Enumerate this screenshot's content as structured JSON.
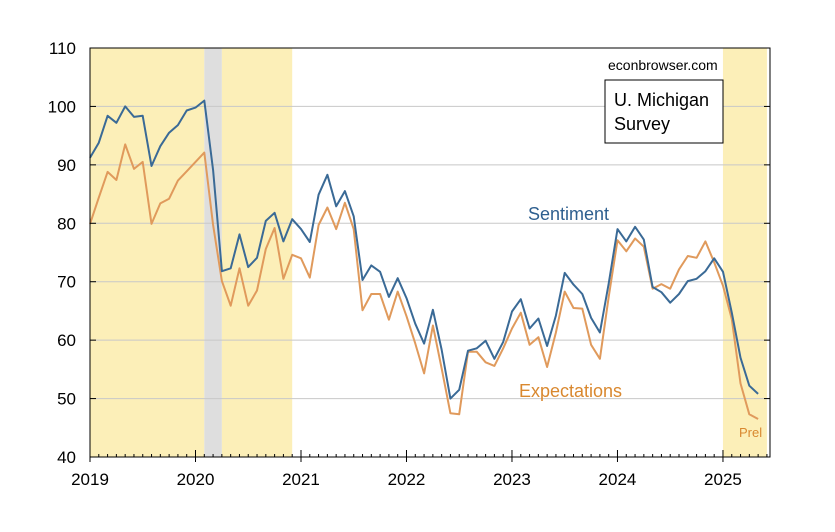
{
  "chart_data": {
    "type": "line",
    "watermark": "econbrowser.com",
    "box_title_line1": "U. Michigan",
    "box_title_line2": "Survey",
    "x_range": [
      "2019-01",
      "2025-06"
    ],
    "ylim": [
      40,
      110
    ],
    "yticks": [
      40,
      50,
      60,
      70,
      80,
      90,
      100,
      110
    ],
    "xtick_labels": [
      "2019",
      "2020",
      "2021",
      "2022",
      "2023",
      "2024",
      "2025"
    ],
    "grid": true,
    "shaded_periods": [
      {
        "start": "2019-01",
        "end": "2020-02",
        "color": "#fcefb8"
      },
      {
        "start": "2020-02",
        "end": "2020-04",
        "color": "#dedede"
      },
      {
        "start": "2020-04",
        "end": "2020-12",
        "color": "#fcefb8"
      },
      {
        "start": "2025-01",
        "end": "2025-06",
        "color": "#fcefb8"
      }
    ],
    "series": [
      {
        "name": "Sentiment",
        "color": "#3a6a96",
        "x": [
          "2019-01",
          "2019-02",
          "2019-03",
          "2019-04",
          "2019-05",
          "2019-06",
          "2019-07",
          "2019-08",
          "2019-09",
          "2019-10",
          "2019-11",
          "2019-12",
          "2020-01",
          "2020-02",
          "2020-03",
          "2020-04",
          "2020-05",
          "2020-06",
          "2020-07",
          "2020-08",
          "2020-09",
          "2020-10",
          "2020-11",
          "2020-12",
          "2021-01",
          "2021-02",
          "2021-03",
          "2021-04",
          "2021-05",
          "2021-06",
          "2021-07",
          "2021-08",
          "2021-09",
          "2021-10",
          "2021-11",
          "2021-12",
          "2022-01",
          "2022-02",
          "2022-03",
          "2022-04",
          "2022-05",
          "2022-06",
          "2022-07",
          "2022-08",
          "2022-09",
          "2022-10",
          "2022-11",
          "2022-12",
          "2023-01",
          "2023-02",
          "2023-03",
          "2023-04",
          "2023-05",
          "2023-06",
          "2023-07",
          "2023-08",
          "2023-09",
          "2023-10",
          "2023-11",
          "2023-12",
          "2024-01",
          "2024-02",
          "2024-03",
          "2024-04",
          "2024-05",
          "2024-06",
          "2024-07",
          "2024-08",
          "2024-09",
          "2024-10",
          "2024-11",
          "2024-12",
          "2025-01",
          "2025-02",
          "2025-03",
          "2025-04",
          "2025-05"
        ],
        "values": [
          91.2,
          93.8,
          98.4,
          97.2,
          100.0,
          98.2,
          98.4,
          89.8,
          93.2,
          95.5,
          96.8,
          99.3,
          99.8,
          101.0,
          89.1,
          71.8,
          72.3,
          78.1,
          72.5,
          74.1,
          80.4,
          81.8,
          76.9,
          80.7,
          79.0,
          76.8,
          84.9,
          88.3,
          82.9,
          85.5,
          81.2,
          70.3,
          72.8,
          71.7,
          67.4,
          70.6,
          67.2,
          62.8,
          59.4,
          65.2,
          58.4,
          50.0,
          51.5,
          58.2,
          58.6,
          59.9,
          56.8,
          59.7,
          64.9,
          67.0,
          62.0,
          63.7,
          59.0,
          64.2,
          71.5,
          69.5,
          67.9,
          63.8,
          61.3,
          69.7,
          79.0,
          76.9,
          79.4,
          77.2,
          69.1,
          68.2,
          66.4,
          67.9,
          70.1,
          70.5,
          71.8,
          74.0,
          71.7,
          64.7,
          57.0,
          52.2,
          50.8
        ]
      },
      {
        "name": "Expectations",
        "color": "#e09a5c",
        "x": [
          "2019-01",
          "2019-02",
          "2019-03",
          "2019-04",
          "2019-05",
          "2019-06",
          "2019-07",
          "2019-08",
          "2019-09",
          "2019-10",
          "2019-11",
          "2019-12",
          "2020-01",
          "2020-02",
          "2020-03",
          "2020-04",
          "2020-05",
          "2020-06",
          "2020-07",
          "2020-08",
          "2020-09",
          "2020-10",
          "2020-11",
          "2020-12",
          "2021-01",
          "2021-02",
          "2021-03",
          "2021-04",
          "2021-05",
          "2021-06",
          "2021-07",
          "2021-08",
          "2021-09",
          "2021-10",
          "2021-11",
          "2021-12",
          "2022-01",
          "2022-02",
          "2022-03",
          "2022-04",
          "2022-05",
          "2022-06",
          "2022-07",
          "2022-08",
          "2022-09",
          "2022-10",
          "2022-11",
          "2022-12",
          "2023-01",
          "2023-02",
          "2023-03",
          "2023-04",
          "2023-05",
          "2023-06",
          "2023-07",
          "2023-08",
          "2023-09",
          "2023-10",
          "2023-11",
          "2023-12",
          "2024-01",
          "2024-02",
          "2024-03",
          "2024-04",
          "2024-05",
          "2024-06",
          "2024-07",
          "2024-08",
          "2024-09",
          "2024-10",
          "2024-11",
          "2024-12",
          "2025-01",
          "2025-02",
          "2025-03",
          "2025-04",
          "2025-05"
        ],
        "values": [
          79.9,
          84.4,
          88.8,
          87.4,
          93.5,
          89.3,
          90.5,
          79.9,
          83.4,
          84.2,
          87.3,
          88.9,
          90.5,
          92.1,
          79.7,
          70.1,
          65.9,
          72.3,
          65.9,
          68.5,
          75.6,
          79.2,
          70.5,
          74.6,
          74.0,
          70.7,
          79.7,
          82.7,
          79.0,
          83.5,
          79.0,
          65.1,
          67.9,
          67.9,
          63.5,
          68.3,
          64.1,
          59.4,
          54.3,
          62.5,
          55.2,
          47.5,
          47.3,
          58.0,
          58.0,
          56.2,
          55.6,
          58.6,
          62.0,
          64.7,
          59.2,
          60.5,
          55.4,
          61.3,
          68.3,
          65.5,
          65.4,
          59.2,
          56.8,
          67.4,
          77.1,
          75.2,
          77.4,
          76.0,
          68.8,
          69.6,
          68.8,
          72.1,
          74.4,
          74.1,
          76.9,
          73.3,
          69.3,
          63.6,
          52.6,
          47.3,
          46.5
        ]
      }
    ],
    "annotations": {
      "sentiment_label": "Sentiment",
      "expectations_label": "Expectations",
      "prel_label": "Prel"
    }
  }
}
